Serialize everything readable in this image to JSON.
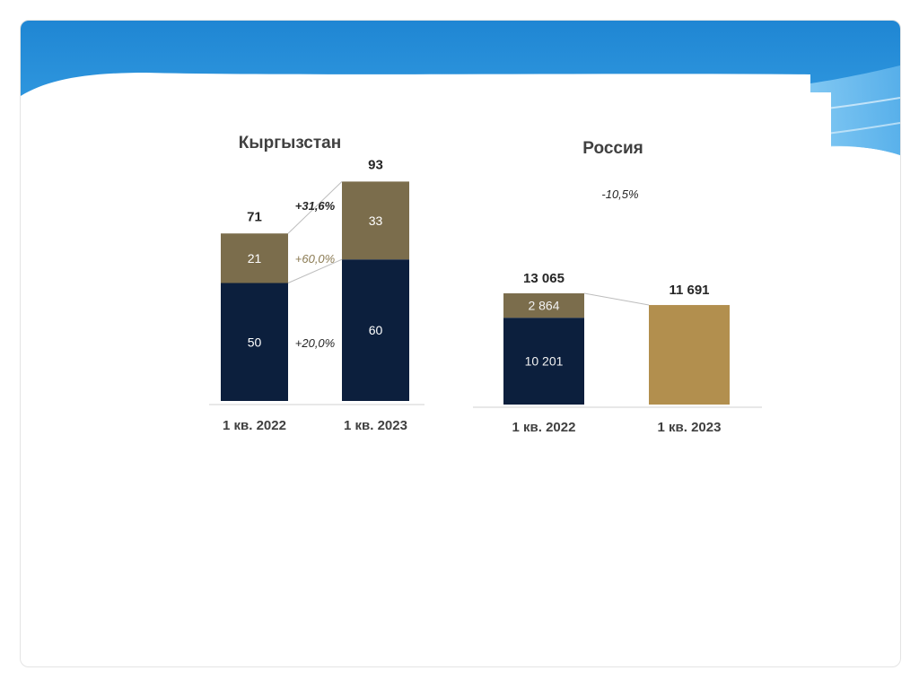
{
  "colors": {
    "header_blue": "#2a8fd8",
    "header_light": "#7cc4f2",
    "navy": "#0c1f3d",
    "olive": "#7b6d4c",
    "gold": "#b28f4e",
    "change_dark": "#262626",
    "change_olive": "#8a7a52"
  },
  "chart_data": [
    {
      "type": "bar",
      "stacked": true,
      "title": "Кыргызстан",
      "categories": [
        "1 кв. 2022",
        "1 кв. 2023"
      ],
      "series": [
        {
          "values": [
            50,
            60
          ],
          "labels": [
            "50",
            "60"
          ],
          "color": "#0c1f3d"
        },
        {
          "values": [
            21,
            33
          ],
          "labels": [
            "21",
            "33"
          ],
          "color": "#7b6d4c"
        }
      ],
      "totals": [
        71,
        93
      ],
      "total_labels": [
        "71",
        "93"
      ],
      "changes": {
        "total": "+31,6%",
        "top": "+60,0%",
        "bottom": "+20,0%"
      },
      "ylim": [
        0,
        100
      ],
      "grid": false
    },
    {
      "type": "bar",
      "stacked": true,
      "title": "Россия",
      "categories": [
        "1 кв. 2022",
        "1 кв. 2023"
      ],
      "series": [
        {
          "values": [
            10201,
            0
          ],
          "labels": [
            "10 201",
            ""
          ],
          "color": "#0c1f3d"
        },
        {
          "values": [
            2864,
            0
          ],
          "labels": [
            "2 864",
            ""
          ],
          "color": "#7b6d4c"
        },
        {
          "values": [
            0,
            11691
          ],
          "labels": [
            "",
            ""
          ],
          "color": "#b28f4e"
        }
      ],
      "totals": [
        13065,
        11691
      ],
      "total_labels": [
        "13 065",
        "11 691"
      ],
      "changes": {
        "total": "-10,5%"
      },
      "ylim": [
        0,
        14000
      ],
      "grid": false
    }
  ]
}
